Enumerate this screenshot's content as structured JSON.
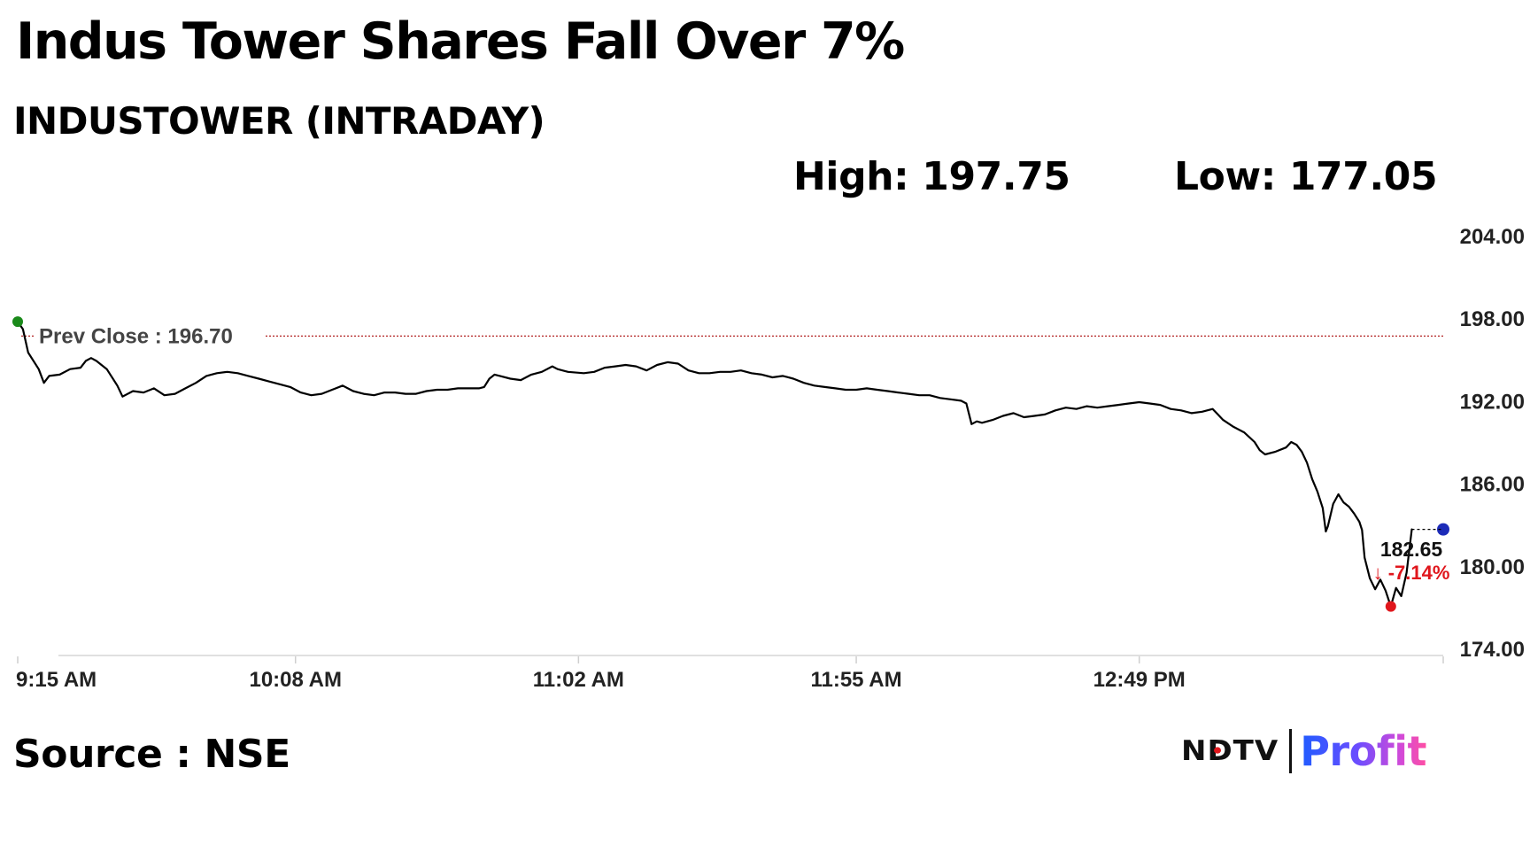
{
  "header": {
    "title": "Indus Tower Shares Fall Over 7%",
    "subtitle": "INDUSTOWER (INTRADAY)"
  },
  "stats": {
    "high": "High: 197.75",
    "low": "Low: 177.05"
  },
  "footer": {
    "source": "Source : NSE",
    "brand_name": "NDTV",
    "brand_product": "Profit"
  },
  "colors": {
    "line": "#000000",
    "prev_close_line": "#b22222",
    "open_marker": "#1a8a1a",
    "low_marker": "#e0161c",
    "last_marker": "#1c2bb8",
    "change_text": "#e0161c"
  },
  "chart_data": {
    "type": "line",
    "title": "INDUSTOWER (INTRADAY)",
    "xlabel": "",
    "ylabel": "",
    "ylim": [
      174,
      204
    ],
    "xlim_minutes": [
      0,
      272
    ],
    "y_ticks": [
      "204.00",
      "198.00",
      "192.00",
      "186.00",
      "180.00",
      "174.00"
    ],
    "x_ticks": [
      {
        "minute": 0,
        "label": "9:15 AM"
      },
      {
        "minute": 53,
        "label": "10:08 AM"
      },
      {
        "minute": 107,
        "label": "11:02 AM"
      },
      {
        "minute": 160,
        "label": "11:55 AM"
      },
      {
        "minute": 214,
        "label": "12:49 PM"
      }
    ],
    "grid": false,
    "legend": "none",
    "prev_close": {
      "value": 196.7,
      "label": "Prev Close : 196.70"
    },
    "open": {
      "minute": 0,
      "value": 197.75
    },
    "day_low": {
      "minute": 262,
      "value": 177.05
    },
    "last": {
      "minute": 266,
      "value": 182.65,
      "label": "182.65",
      "change": "-7.14%",
      "change_arrow": "↓"
    },
    "series": [
      {
        "points": [
          [
            0,
            197.75
          ],
          [
            1,
            197.2
          ],
          [
            2,
            195.5
          ],
          [
            4,
            194.3
          ],
          [
            5,
            193.3
          ],
          [
            6,
            193.8
          ],
          [
            8,
            193.9
          ],
          [
            10,
            194.3
          ],
          [
            12,
            194.4
          ],
          [
            13,
            194.9
          ],
          [
            14,
            195.1
          ],
          [
            15,
            194.9
          ],
          [
            17,
            194.3
          ],
          [
            19,
            193.1
          ],
          [
            20,
            192.3
          ],
          [
            22,
            192.7
          ],
          [
            24,
            192.6
          ],
          [
            26,
            192.9
          ],
          [
            28,
            192.4
          ],
          [
            30,
            192.5
          ],
          [
            32,
            192.9
          ],
          [
            34,
            193.3
          ],
          [
            36,
            193.8
          ],
          [
            38,
            194.0
          ],
          [
            40,
            194.1
          ],
          [
            42,
            194.0
          ],
          [
            44,
            193.8
          ],
          [
            46,
            193.6
          ],
          [
            48,
            193.4
          ],
          [
            50,
            193.2
          ],
          [
            52,
            193.0
          ],
          [
            54,
            192.6
          ],
          [
            56,
            192.4
          ],
          [
            58,
            192.5
          ],
          [
            60,
            192.8
          ],
          [
            62,
            193.1
          ],
          [
            64,
            192.7
          ],
          [
            66,
            192.5
          ],
          [
            68,
            192.4
          ],
          [
            70,
            192.6
          ],
          [
            72,
            192.6
          ],
          [
            74,
            192.5
          ],
          [
            76,
            192.5
          ],
          [
            78,
            192.7
          ],
          [
            80,
            192.8
          ],
          [
            82,
            192.8
          ],
          [
            84,
            192.9
          ],
          [
            86,
            192.9
          ],
          [
            88,
            192.9
          ],
          [
            89,
            193.0
          ],
          [
            90,
            193.6
          ],
          [
            91,
            193.9
          ],
          [
            92,
            193.8
          ],
          [
            94,
            193.6
          ],
          [
            96,
            193.5
          ],
          [
            98,
            193.9
          ],
          [
            100,
            194.1
          ],
          [
            102,
            194.5
          ],
          [
            103,
            194.3
          ],
          [
            105,
            194.1
          ],
          [
            108,
            194.0
          ],
          [
            110,
            194.1
          ],
          [
            112,
            194.4
          ],
          [
            114,
            194.5
          ],
          [
            116,
            194.6
          ],
          [
            118,
            194.5
          ],
          [
            120,
            194.2
          ],
          [
            122,
            194.6
          ],
          [
            124,
            194.8
          ],
          [
            126,
            194.7
          ],
          [
            128,
            194.2
          ],
          [
            130,
            194.0
          ],
          [
            132,
            194.0
          ],
          [
            134,
            194.1
          ],
          [
            136,
            194.1
          ],
          [
            138,
            194.2
          ],
          [
            140,
            194.0
          ],
          [
            142,
            193.9
          ],
          [
            144,
            193.7
          ],
          [
            146,
            193.8
          ],
          [
            148,
            193.6
          ],
          [
            150,
            193.3
          ],
          [
            152,
            193.1
          ],
          [
            154,
            193.0
          ],
          [
            156,
            192.9
          ],
          [
            158,
            192.8
          ],
          [
            160,
            192.8
          ],
          [
            162,
            192.9
          ],
          [
            164,
            192.8
          ],
          [
            166,
            192.7
          ],
          [
            168,
            192.6
          ],
          [
            170,
            192.5
          ],
          [
            172,
            192.4
          ],
          [
            174,
            192.4
          ],
          [
            176,
            192.2
          ],
          [
            178,
            192.1
          ],
          [
            180,
            192.0
          ],
          [
            181,
            191.8
          ],
          [
            182,
            190.3
          ],
          [
            183,
            190.5
          ],
          [
            184,
            190.4
          ],
          [
            186,
            190.6
          ],
          [
            188,
            190.9
          ],
          [
            190,
            191.1
          ],
          [
            192,
            190.8
          ],
          [
            194,
            190.9
          ],
          [
            196,
            191.0
          ],
          [
            198,
            191.3
          ],
          [
            200,
            191.5
          ],
          [
            202,
            191.4
          ],
          [
            204,
            191.6
          ],
          [
            206,
            191.5
          ],
          [
            208,
            191.6
          ],
          [
            210,
            191.7
          ],
          [
            212,
            191.8
          ],
          [
            214,
            191.9
          ],
          [
            216,
            191.8
          ],
          [
            218,
            191.7
          ],
          [
            220,
            191.4
          ],
          [
            222,
            191.3
          ],
          [
            224,
            191.1
          ],
          [
            226,
            191.2
          ],
          [
            228,
            191.4
          ],
          [
            229,
            191.0
          ],
          [
            230,
            190.6
          ],
          [
            232,
            190.1
          ],
          [
            234,
            189.7
          ],
          [
            236,
            189.0
          ],
          [
            237,
            188.4
          ],
          [
            238,
            188.1
          ],
          [
            240,
            188.3
          ],
          [
            242,
            188.6
          ],
          [
            243,
            189.0
          ],
          [
            244,
            188.8
          ],
          [
            245,
            188.3
          ],
          [
            246,
            187.5
          ],
          [
            247,
            186.3
          ],
          [
            248,
            185.4
          ],
          [
            249,
            184.2
          ],
          [
            249.6,
            182.5
          ],
          [
            250,
            182.9
          ],
          [
            251,
            184.5
          ],
          [
            252,
            185.2
          ],
          [
            253,
            184.6
          ],
          [
            254,
            184.3
          ],
          [
            255,
            183.8
          ],
          [
            256,
            183.2
          ],
          [
            256.5,
            182.6
          ],
          [
            257,
            180.6
          ],
          [
            258,
            179.1
          ],
          [
            259,
            178.3
          ],
          [
            260,
            179.0
          ],
          [
            261,
            178.2
          ],
          [
            262,
            177.05
          ],
          [
            263,
            178.4
          ],
          [
            264,
            177.8
          ],
          [
            265,
            179.5
          ],
          [
            266,
            182.65
          ]
        ]
      }
    ]
  }
}
